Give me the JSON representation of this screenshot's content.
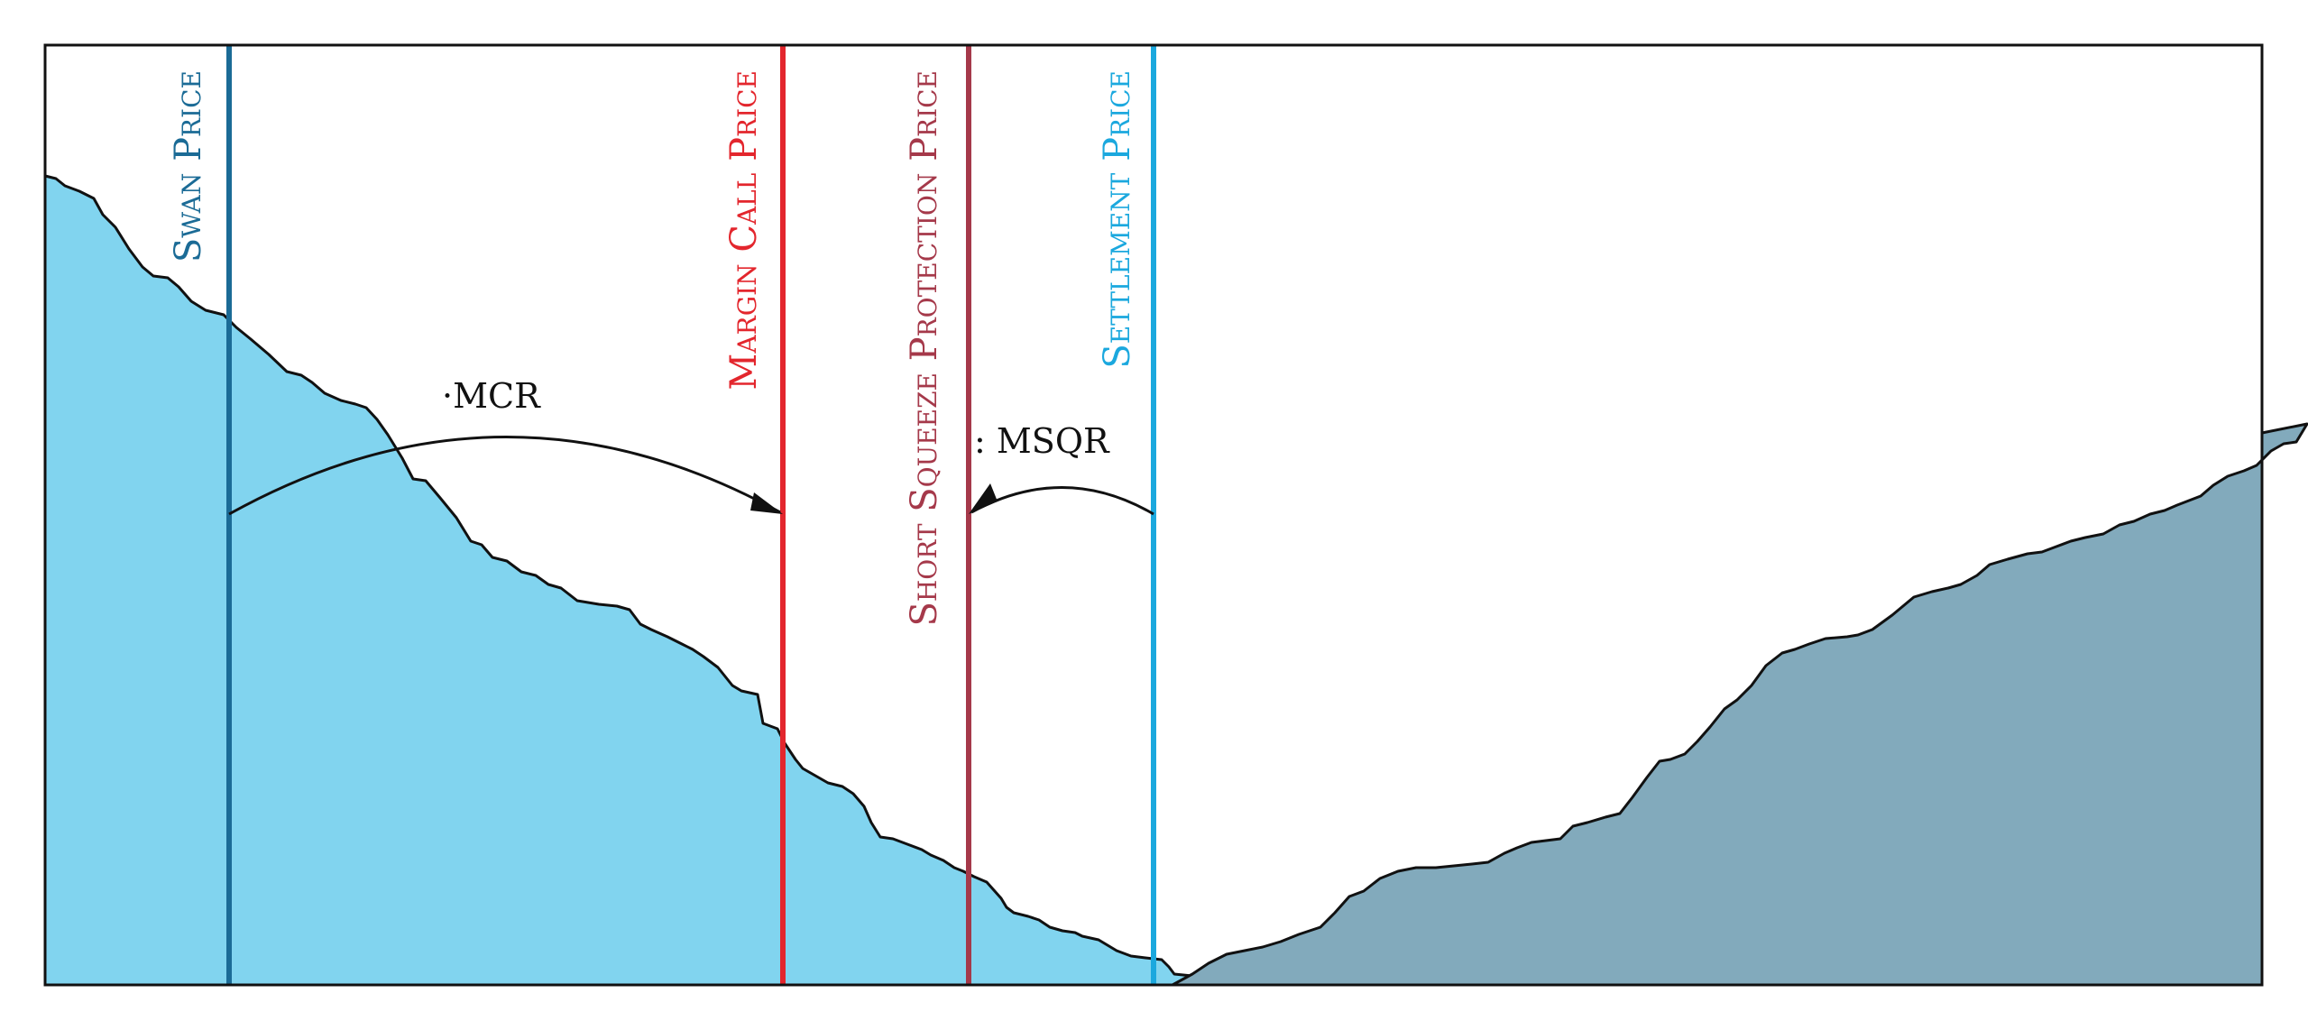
{
  "diagram": {
    "colors": {
      "frame": "#111111",
      "bid_fill": "#81d4ef",
      "ask_fill": "#82aabc",
      "swan": "#1b6b96",
      "margin_call": "#e3262d",
      "short_squeeze": "#a5394a",
      "settlement": "#1ba8de"
    },
    "price_lines": [
      {
        "key": "swan",
        "label": "Swan Price",
        "color": "#1b6b96"
      },
      {
        "key": "margin_call",
        "label": "Margin Call Price",
        "color": "#e3262d"
      },
      {
        "key": "short_squeeze",
        "label": "Short Squeeze Protection Price",
        "color": "#a5394a"
      },
      {
        "key": "settlement",
        "label": "Settlement Price",
        "color": "#1ba8de"
      }
    ],
    "arrows": [
      {
        "key": "mcr",
        "label": "·MCR"
      },
      {
        "key": "msqr",
        "label": ": MSQR"
      }
    ]
  }
}
